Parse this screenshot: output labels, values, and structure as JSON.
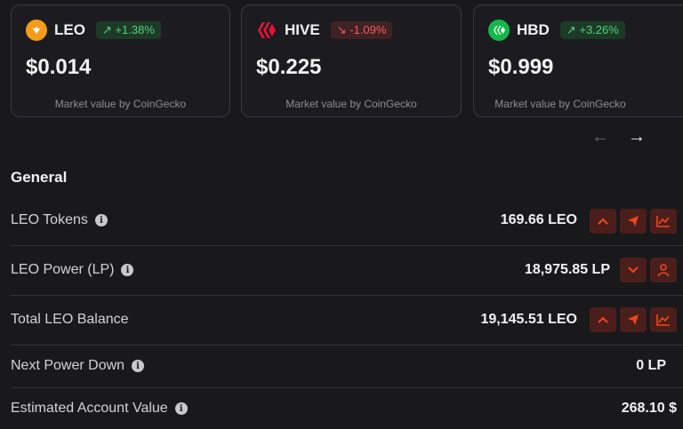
{
  "cards": [
    {
      "symbol": "LEO",
      "change": "↗ +1.38%",
      "price": "$0.014",
      "source": "Market value by CoinGecko",
      "logo_color": "#f49b1a",
      "change_dir": "up"
    },
    {
      "symbol": "HIVE",
      "change": "↘ -1.09%",
      "price": "$0.225",
      "source": "Market value by CoinGecko",
      "logo_color": "#e31337",
      "change_dir": "down"
    },
    {
      "symbol": "HBD",
      "change": "↗ +3.26%",
      "price": "$0.999",
      "source": "Market value by CoinGecko",
      "logo_color": "#13b84a",
      "change_dir": "up"
    }
  ],
  "carousel": {
    "prev_icon": "←",
    "next_icon": "→"
  },
  "general": {
    "title": "General",
    "rows": [
      {
        "label": "LEO Tokens",
        "value": "169.66 LEO"
      },
      {
        "label": "LEO Power (LP)",
        "value": "18,975.85 LP"
      },
      {
        "label": "Total LEO Balance",
        "value": "19,145.51 LEO"
      },
      {
        "label": "Next Power Down",
        "value": "0 LP"
      },
      {
        "label": "Estimated Account Value",
        "value": "268.10 $"
      }
    ]
  },
  "colors": {
    "accent": "#f0451f",
    "action_bg": "#4a1f1b"
  }
}
